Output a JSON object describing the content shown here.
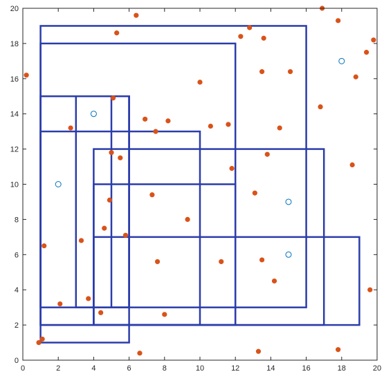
{
  "chart_data": {
    "type": "scatter",
    "title": "",
    "xlabel": "",
    "ylabel": "",
    "xlim": [
      0,
      20
    ],
    "ylim": [
      0,
      20
    ],
    "grid": false,
    "x_ticks": [
      0,
      2,
      4,
      6,
      8,
      10,
      12,
      14,
      16,
      18,
      20
    ],
    "y_ticks": [
      0,
      2,
      4,
      6,
      8,
      10,
      12,
      14,
      16,
      18,
      20
    ],
    "x_tick_labels": [
      "0",
      "2",
      "4",
      "6",
      "8",
      "10",
      "12",
      "14",
      "16",
      "18",
      "20"
    ],
    "y_tick_labels": [
      "0",
      "2",
      "4",
      "6",
      "8",
      "10",
      "12",
      "14",
      "16",
      "18",
      "20"
    ],
    "colors": {
      "rectangles": "#2b3cab",
      "filled_points": "#d95319",
      "open_points": "#0072bd",
      "axes": "#262626"
    },
    "rectangles": [
      {
        "x0": 1,
        "y0": 3,
        "x1": 16,
        "y1": 19
      },
      {
        "x0": 1,
        "y0": 2,
        "x1": 12,
        "y1": 18
      },
      {
        "x0": 1,
        "y0": 1,
        "x1": 6,
        "y1": 15
      },
      {
        "x0": 1,
        "y0": 2,
        "x1": 10,
        "y1": 13
      },
      {
        "x0": 3,
        "y0": 3,
        "x1": 6,
        "y1": 15
      },
      {
        "x0": 4,
        "y0": 2,
        "x1": 17,
        "y1": 12
      },
      {
        "x0": 4,
        "y0": 2,
        "x1": 12,
        "y1": 10
      },
      {
        "x0": 4,
        "y0": 2,
        "x1": 19,
        "y1": 7
      },
      {
        "x0": 5,
        "y0": 3,
        "x1": 6,
        "y1": 15
      }
    ],
    "series": [
      {
        "marker": "filled",
        "points": [
          [
            0.2,
            16.2
          ],
          [
            0.9,
            1.0
          ],
          [
            1.1,
            1.2
          ],
          [
            1.2,
            6.5
          ],
          [
            2.1,
            3.2
          ],
          [
            2.7,
            13.2
          ],
          [
            3.3,
            6.8
          ],
          [
            3.7,
            3.5
          ],
          [
            4.4,
            2.7
          ],
          [
            4.6,
            7.5
          ],
          [
            4.9,
            9.1
          ],
          [
            5.0,
            11.8
          ],
          [
            5.1,
            14.9
          ],
          [
            5.3,
            18.6
          ],
          [
            5.5,
            11.5
          ],
          [
            5.8,
            7.1
          ],
          [
            6.4,
            19.6
          ],
          [
            6.6,
            0.4
          ],
          [
            6.9,
            13.7
          ],
          [
            7.3,
            9.4
          ],
          [
            7.5,
            13.0
          ],
          [
            7.6,
            5.6
          ],
          [
            8.0,
            2.6
          ],
          [
            8.2,
            13.6
          ],
          [
            9.3,
            8.0
          ],
          [
            10.0,
            15.8
          ],
          [
            10.6,
            13.3
          ],
          [
            11.2,
            5.6
          ],
          [
            11.6,
            13.4
          ],
          [
            11.8,
            10.9
          ],
          [
            12.3,
            18.4
          ],
          [
            12.8,
            18.9
          ],
          [
            13.1,
            9.5
          ],
          [
            13.3,
            0.5
          ],
          [
            13.5,
            16.4
          ],
          [
            13.5,
            5.7
          ],
          [
            13.6,
            18.3
          ],
          [
            13.8,
            11.7
          ],
          [
            14.2,
            4.5
          ],
          [
            14.5,
            13.2
          ],
          [
            15.1,
            16.4
          ],
          [
            16.8,
            14.4
          ],
          [
            16.9,
            20.0
          ],
          [
            17.8,
            19.3
          ],
          [
            17.8,
            0.6
          ],
          [
            18.6,
            11.1
          ],
          [
            18.8,
            16.1
          ],
          [
            19.4,
            17.5
          ],
          [
            19.6,
            4.0
          ],
          [
            19.8,
            18.2
          ]
        ]
      },
      {
        "marker": "open",
        "points": [
          [
            2,
            10
          ],
          [
            4,
            14
          ],
          [
            15,
            9
          ],
          [
            15,
            6
          ],
          [
            18,
            17
          ]
        ]
      }
    ]
  }
}
